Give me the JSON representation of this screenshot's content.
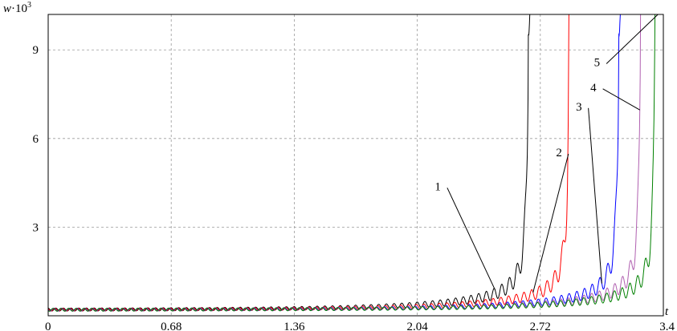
{
  "chart_data": {
    "type": "line",
    "title": "",
    "xlabel": "t",
    "ylabel_base": "w",
    "ylabel_sup": "3",
    "ylabel_mid": "·10",
    "xlim": [
      0,
      3.4
    ],
    "ylim": [
      0,
      10.2
    ],
    "xticks": [
      0,
      0.68,
      1.36,
      2.04,
      2.72,
      3.4
    ],
    "xtick_labels": [
      "0",
      "0.68",
      "1.36",
      "2.04",
      "2.72",
      "3.4"
    ],
    "yticks": [
      3,
      6,
      9
    ],
    "ytick_labels": [
      "3",
      "6",
      "9"
    ],
    "grid": true,
    "oscillation_period": 0.0425,
    "series": [
      {
        "name": "1",
        "color": "#000000",
        "blowup_t": 2.66,
        "label_at": 2.47,
        "label_pos": [
          2.17,
          4.25
        ]
      },
      {
        "name": "2",
        "color": "#ff0000",
        "blowup_t": 2.885,
        "label_at": 2.68,
        "label_pos": [
          2.84,
          5.4
        ]
      },
      {
        "name": "3",
        "color": "#0000ff",
        "blowup_t": 3.16,
        "label_at": 3.06,
        "label_pos": [
          2.95,
          6.95
        ]
      },
      {
        "name": "4",
        "color": "#b060b0",
        "blowup_t": 3.28,
        "label_at": 3.27,
        "label_pos": [
          3.03,
          7.6
        ]
      },
      {
        "name": "5",
        "color": "#008000",
        "blowup_t": 3.36,
        "label_at": 3.37,
        "label_pos": [
          3.05,
          8.45
        ]
      }
    ]
  }
}
